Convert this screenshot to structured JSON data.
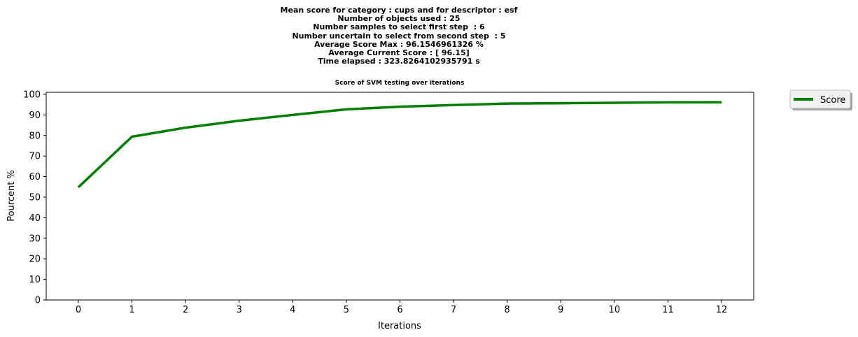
{
  "figure": {
    "suptitle_lines": [
      "Mean score for category : cups and for descriptor : esf",
      "Number of objects used : 25",
      "Number samples to select first step  : 6",
      "Number uncertain to select from second step  : 5",
      "Average Score Max : 96.1546961326 %",
      "Average Current Score : [ 96.15]",
      "Time elapsed : 323.8264102935791 s"
    ]
  },
  "chart_data": {
    "type": "line",
    "title": "Score of SVM testing over iterations",
    "xlabel": "Iterations",
    "ylabel": "Pourcent %",
    "x": [
      0,
      1,
      2,
      3,
      4,
      5,
      6,
      7,
      8,
      9,
      10,
      11,
      12
    ],
    "xticks": [
      "0",
      "1",
      "2",
      "3",
      "4",
      "5",
      "6",
      "7",
      "8",
      "9",
      "10",
      "11",
      "12"
    ],
    "yticks": [
      "0",
      "10",
      "20",
      "30",
      "40",
      "50",
      "60",
      "70",
      "80",
      "90",
      "100"
    ],
    "xlim": [
      -0.6,
      12.6
    ],
    "ylim": [
      0,
      101
    ],
    "grid": false,
    "legend_position": "outside-top-right",
    "series": [
      {
        "name": "Score",
        "color": "#008000",
        "values": [
          54.8,
          79.4,
          83.8,
          87.2,
          90.0,
          92.7,
          94.0,
          94.8,
          95.5,
          95.7,
          95.9,
          96.1,
          96.15
        ]
      }
    ]
  }
}
